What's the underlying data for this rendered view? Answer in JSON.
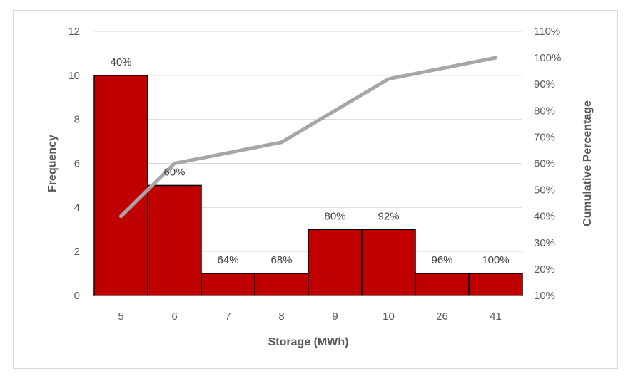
{
  "chart_data": {
    "type": "bar",
    "categories": [
      "5",
      "6",
      "7",
      "8",
      "9",
      "10",
      "26",
      "41"
    ],
    "series": [
      {
        "type": "bar",
        "axis": "left",
        "color": "#c00000",
        "values": [
          10,
          5,
          1,
          1,
          3,
          3,
          1,
          1
        ]
      },
      {
        "type": "line",
        "axis": "right",
        "color": "#a6a6a6",
        "values": [
          40,
          60,
          64,
          68,
          80,
          92,
          96,
          100
        ]
      }
    ],
    "data_labels": [
      "40%",
      "60%",
      "64%",
      "68%",
      "80%",
      "92%",
      "96%",
      "100%"
    ],
    "xlabel": "Storage (MWh)",
    "ylabel": "Frequency",
    "y2label": "Cumulative Percentage",
    "ylim": [
      0,
      12
    ],
    "yticks": [
      0,
      2,
      4,
      6,
      8,
      10,
      12
    ],
    "y2lim": [
      10,
      110
    ],
    "y2ticks": [
      "10%",
      "20%",
      "30%",
      "40%",
      "50%",
      "60%",
      "70%",
      "80%",
      "90%",
      "100%",
      "110%"
    ],
    "grid": true,
    "legend": "none"
  }
}
